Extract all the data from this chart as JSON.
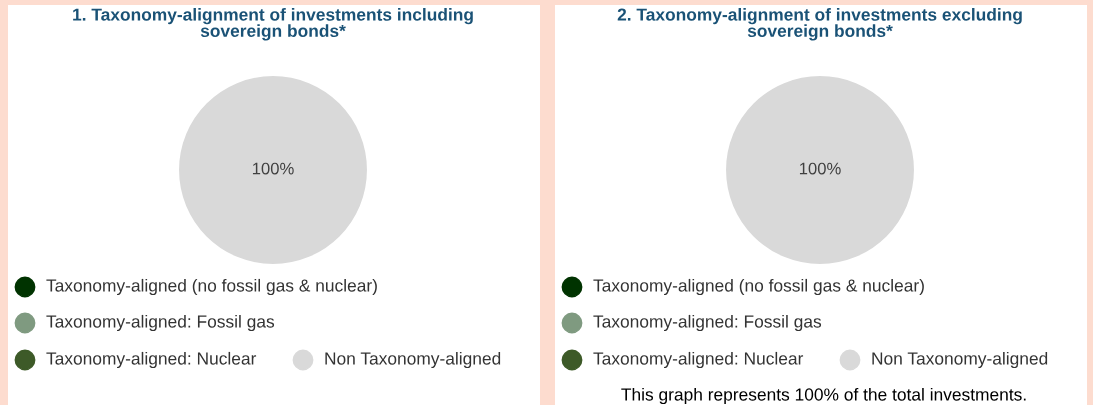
{
  "chart_data": [
    {
      "type": "pie",
      "title": "1. Taxonomy-alignment of investments including\nsovereign bonds*",
      "categories": [
        "Taxonomy-aligned (no fossil gas & nuclear)",
        "Taxonomy-aligned: Fossil gas",
        "Taxonomy-aligned: Nuclear",
        "Non Taxonomy-aligned"
      ],
      "values": [
        0,
        0,
        0,
        100
      ],
      "colors": [
        "#003300",
        "#7f9a80",
        "#3d5a28",
        "#d9d9d9"
      ],
      "value_labels": [
        null,
        null,
        null,
        "100%"
      ],
      "legend": "bottom"
    },
    {
      "type": "pie",
      "title": "2. Taxonomy-alignment of investments excluding\nsovereign bonds*",
      "categories": [
        "Taxonomy-aligned (no fossil gas & nuclear)",
        "Taxonomy-aligned: Fossil gas",
        "Taxonomy-aligned: Nuclear",
        "Non Taxonomy-aligned"
      ],
      "values": [
        0,
        0,
        0,
        100
      ],
      "colors": [
        "#003300",
        "#7f9a80",
        "#3d5a28",
        "#d9d9d9"
      ],
      "value_labels": [
        null,
        null,
        null,
        "100%"
      ],
      "legend": "bottom",
      "annotations": [
        "This graph represents 100% of the total investments."
      ]
    }
  ]
}
